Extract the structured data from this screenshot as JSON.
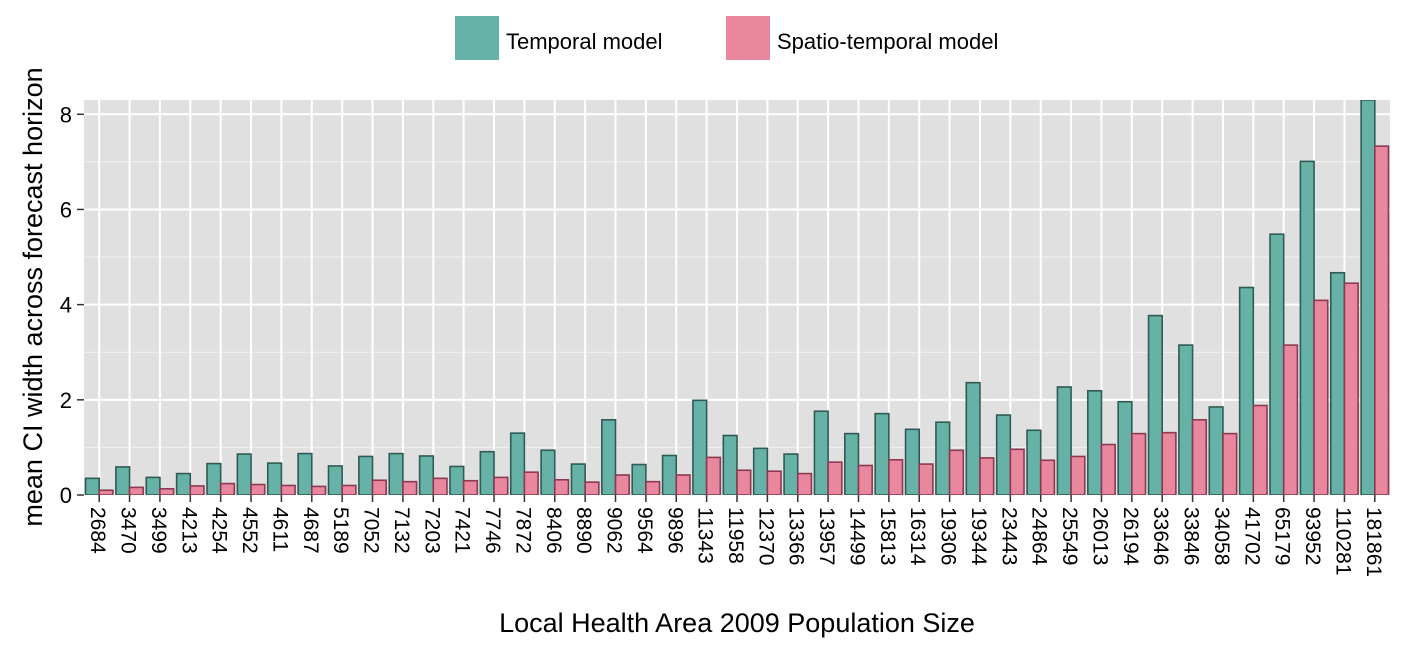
{
  "chart_data": {
    "type": "bar",
    "xlabel": "Local Health Area 2009 Population Size",
    "ylabel": "mean CI width across forecast horizon",
    "ylim": [
      0,
      8.3
    ],
    "yticks": [
      0,
      2,
      4,
      6,
      8
    ],
    "grid": true,
    "legend_position": "top",
    "categories": [
      "2684",
      "3470",
      "3499",
      "4213",
      "4254",
      "4552",
      "4611",
      "4687",
      "5189",
      "7052",
      "7132",
      "7203",
      "7421",
      "7746",
      "7872",
      "8406",
      "8890",
      "9062",
      "9564",
      "9896",
      "11343",
      "11958",
      "12370",
      "13366",
      "13957",
      "14499",
      "15813",
      "16314",
      "19306",
      "19344",
      "23443",
      "24864",
      "25549",
      "26013",
      "26194",
      "33646",
      "33846",
      "34058",
      "41702",
      "65179",
      "93952",
      "110281",
      "181861"
    ],
    "series": [
      {
        "name": "Temporal model",
        "color": "#66b2a6",
        "values": [
          0.35,
          0.59,
          0.37,
          0.45,
          0.66,
          0.86,
          0.67,
          0.87,
          0.61,
          0.81,
          0.87,
          0.82,
          0.6,
          0.91,
          1.3,
          0.94,
          0.65,
          1.58,
          0.64,
          0.83,
          1.99,
          1.25,
          0.98,
          0.86,
          1.76,
          1.29,
          1.71,
          1.38,
          1.53,
          2.36,
          1.68,
          1.36,
          2.27,
          2.19,
          1.96,
          3.77,
          3.15,
          1.85,
          4.36,
          5.48,
          7.01,
          4.67,
          8.3
        ]
      },
      {
        "name": "Spatio-temporal model",
        "color": "#e8879e",
        "values": [
          0.1,
          0.16,
          0.13,
          0.19,
          0.24,
          0.22,
          0.2,
          0.18,
          0.2,
          0.31,
          0.28,
          0.35,
          0.3,
          0.37,
          0.48,
          0.32,
          0.27,
          0.42,
          0.28,
          0.42,
          0.79,
          0.52,
          0.5,
          0.45,
          0.69,
          0.62,
          0.74,
          0.65,
          0.94,
          0.78,
          0.96,
          0.73,
          0.81,
          1.06,
          1.29,
          1.31,
          1.58,
          1.29,
          1.88,
          3.15,
          4.09,
          4.45,
          7.33
        ]
      }
    ]
  }
}
